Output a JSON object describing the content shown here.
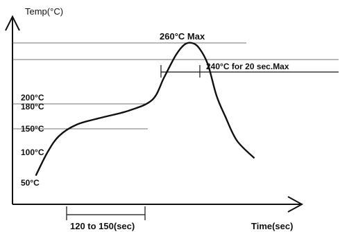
{
  "chart_data": {
    "type": "line",
    "title": "",
    "ylabel": "Temp(°C)",
    "xlabel": "Time(sec)",
    "y_ticks": [
      {
        "label": "50°C",
        "value": 50
      },
      {
        "label": "100°C",
        "value": 100
      },
      {
        "label": "150°C",
        "value": 150
      },
      {
        "label": "180°C",
        "value": 180
      },
      {
        "label": "200°C",
        "value": 200
      }
    ],
    "reference_lines": [
      {
        "value": 260,
        "label": "260°C Max"
      },
      {
        "value": 240,
        "label": "240°C for 20 sec.Max"
      },
      {
        "value": 180,
        "label": ""
      },
      {
        "value": 150,
        "label": ""
      }
    ],
    "annotations": {
      "preheat_span": "120 to 150(sec)",
      "peak": "260°C Max",
      "time_above": "240°C for 20 sec.Max"
    },
    "series": [
      {
        "points": [
          [
            0.08,
            60
          ],
          [
            0.12,
            100
          ],
          [
            0.16,
            135
          ],
          [
            0.22,
            155
          ],
          [
            0.3,
            163
          ],
          [
            0.4,
            172
          ],
          [
            0.48,
            190
          ],
          [
            0.52,
            220
          ],
          [
            0.56,
            245
          ],
          [
            0.59,
            258
          ],
          [
            0.615,
            260
          ],
          [
            0.64,
            254
          ],
          [
            0.67,
            235
          ],
          [
            0.7,
            200
          ],
          [
            0.73,
            165
          ],
          [
            0.77,
            125
          ],
          [
            0.83,
            90
          ]
        ]
      }
    ]
  }
}
